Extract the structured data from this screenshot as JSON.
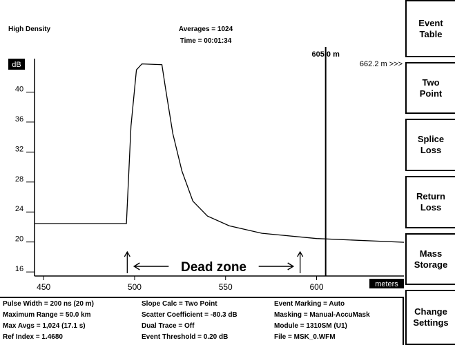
{
  "header": {
    "mode": "High Density",
    "averages": "Averages = 1024",
    "time": "Time = 00:01:34"
  },
  "chart_data": {
    "type": "line",
    "y_label": "dB",
    "x_label": "meters",
    "x": [
      445,
      495.5,
      498,
      501,
      504,
      515,
      517,
      521,
      526,
      532,
      540,
      552,
      570,
      600,
      648
    ],
    "values": [
      22,
      22,
      35,
      42.5,
      43.3,
      43.2,
      40,
      34,
      29,
      25,
      23,
      21.7,
      20.7,
      20,
      19.5
    ],
    "color": "#000000",
    "xlim": [
      445,
      648
    ],
    "ylim": [
      15,
      44
    ],
    "xticks": [
      450,
      500,
      550,
      600
    ],
    "yticks": [
      16,
      20,
      24,
      28,
      32,
      36,
      40
    ],
    "cursor": {
      "value": 605,
      "label": "605.0 m"
    },
    "offscreen": "662.2 m >>>",
    "dead_zone": {
      "label": "Dead zone",
      "start": 499,
      "end": 594
    }
  },
  "buttons": [
    [
      "Event",
      "Table"
    ],
    [
      "Two",
      "Point"
    ],
    [
      "Splice",
      "Loss"
    ],
    [
      "Return",
      "Loss"
    ],
    [
      "Mass",
      "Storage"
    ],
    [
      "Change",
      "Settings"
    ]
  ],
  "info": [
    [
      "Pulse Width = 200 ns (20 m)",
      "Slope Calc = Two Point",
      "Event Marking = Auto"
    ],
    [
      "Maximum Range = 50.0 km",
      "Scatter Coefficient = -80.3 dB",
      "Masking = Manual-AccuMask"
    ],
    [
      "Max Avgs = 1,024 (17.1 s)",
      "Dual Trace = Off",
      "Module = 1310SM (U1)"
    ],
    [
      "Ref Index = 1.4680",
      "Event Threshold = 0.20 dB",
      "File = MSK_0.WFM"
    ]
  ]
}
